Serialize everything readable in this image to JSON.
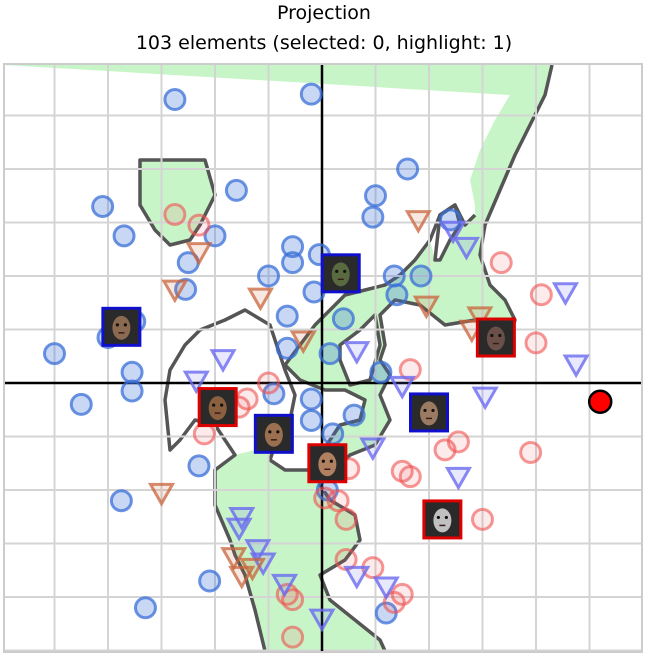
{
  "chart_data": {
    "type": "scatter",
    "title": "Projection",
    "subtitle": "103 elements (selected: 0, highlight: 1)",
    "xlim": [
      -6.0,
      6.0
    ],
    "ylim": [
      -5.0,
      6.0
    ],
    "grid": true,
    "legend": "none",
    "colors": {
      "region": "#c8f5c8",
      "boundary": "#555555",
      "grid": "#d4d4d4",
      "axes": "#000000",
      "blue": "#3a6fd8",
      "red": "#f05050",
      "blue_triangle": "#6a6af0",
      "brown_triangle": "#c8643c",
      "highlight": "#ff0000",
      "frame_blue": "#1010cc",
      "frame_red": "#dd0000"
    },
    "series": [
      {
        "marker": "circle-blue",
        "points": [
          [
            -2.75,
            5.3
          ],
          [
            -0.2,
            5.4
          ],
          [
            -4.1,
            3.3
          ],
          [
            -3.7,
            2.75
          ],
          [
            1.6,
            4.0
          ],
          [
            1.0,
            3.5
          ],
          [
            0.95,
            3.1
          ],
          [
            2.4,
            3.05
          ],
          [
            -1.6,
            3.6
          ],
          [
            -2.0,
            2.75
          ],
          [
            -2.5,
            2.25
          ],
          [
            -3.5,
            1.15
          ],
          [
            -4.0,
            0.85
          ],
          [
            -0.55,
            2.55
          ],
          [
            -0.55,
            2.25
          ],
          [
            -0.05,
            2.4
          ],
          [
            1.35,
            2.0
          ],
          [
            -0.15,
            1.7
          ],
          [
            1.4,
            1.65
          ],
          [
            1.85,
            2.0
          ],
          [
            -1.0,
            2.0
          ],
          [
            -2.55,
            1.75
          ],
          [
            -0.65,
            1.25
          ],
          [
            0.4,
            1.2
          ],
          [
            -0.65,
            0.65
          ],
          [
            0.15,
            0.55
          ],
          [
            -3.55,
            0.2
          ],
          [
            -3.55,
            -0.15
          ],
          [
            -5.0,
            0.55
          ],
          [
            -4.5,
            -0.4
          ],
          [
            1.1,
            0.2
          ],
          [
            -0.2,
            -0.3
          ],
          [
            -0.2,
            -0.7
          ],
          [
            0.6,
            -0.6
          ],
          [
            0.2,
            -0.95
          ],
          [
            -0.9,
            -0.2
          ],
          [
            -2.3,
            -1.55
          ],
          [
            1.9,
            -0.5
          ],
          [
            0.1,
            -2.0
          ],
          [
            -3.75,
            -2.2
          ],
          [
            -2.1,
            -3.7
          ],
          [
            -3.3,
            -4.2
          ],
          [
            1.2,
            -4.3
          ]
        ]
      },
      {
        "marker": "circle-red",
        "points": [
          [
            -2.75,
            3.15
          ],
          [
            -2.3,
            2.95
          ],
          [
            3.35,
            2.25
          ],
          [
            4.1,
            1.65
          ],
          [
            4.0,
            0.75
          ],
          [
            3.9,
            -1.3
          ],
          [
            1.65,
            0.25
          ],
          [
            -1.0,
            0.0
          ],
          [
            -1.4,
            -0.3
          ],
          [
            -2.2,
            -0.95
          ],
          [
            -1.55,
            -0.45
          ],
          [
            0.15,
            -1.65
          ],
          [
            0.5,
            -1.6
          ],
          [
            2.55,
            -1.1
          ],
          [
            2.3,
            -1.25
          ],
          [
            1.5,
            -1.65
          ],
          [
            1.65,
            -1.75
          ],
          [
            0.3,
            -2.2
          ],
          [
            0.45,
            -2.55
          ],
          [
            3.0,
            -2.55
          ],
          [
            0.45,
            -3.3
          ],
          [
            0.95,
            -3.45
          ],
          [
            1.5,
            -3.95
          ],
          [
            1.35,
            -4.1
          ],
          [
            -0.65,
            -3.95
          ],
          [
            -0.55,
            -4.05
          ],
          [
            -0.55,
            -4.75
          ],
          [
            0.05,
            -2.15
          ]
        ]
      },
      {
        "marker": "triangle-blue",
        "points": [
          [
            2.45,
            2.85
          ],
          [
            2.7,
            2.55
          ],
          [
            4.55,
            1.7
          ],
          [
            4.75,
            0.35
          ],
          [
            0.65,
            0.6
          ],
          [
            -1.85,
            0.45
          ],
          [
            -2.35,
            0.05
          ],
          [
            1.5,
            -0.05
          ],
          [
            3.05,
            -0.25
          ],
          [
            0.95,
            -1.2
          ],
          [
            2.55,
            -1.75
          ],
          [
            -1.5,
            -2.5
          ],
          [
            -1.55,
            -2.7
          ],
          [
            -1.1,
            -3.35
          ],
          [
            -0.7,
            -3.75
          ],
          [
            0.65,
            -3.6
          ],
          [
            1.2,
            -3.8
          ],
          [
            0.0,
            -4.4
          ],
          [
            -1.2,
            -3.1
          ]
        ]
      },
      {
        "marker": "triangle-brown",
        "points": [
          [
            1.8,
            3.05
          ],
          [
            -2.3,
            2.45
          ],
          [
            -2.75,
            1.75
          ],
          [
            -1.15,
            1.6
          ],
          [
            1.95,
            1.45
          ],
          [
            2.95,
            1.25
          ],
          [
            -0.35,
            0.8
          ],
          [
            -3.0,
            -2.05
          ],
          [
            -1.65,
            -3.25
          ],
          [
            -1.5,
            -3.6
          ],
          [
            -1.3,
            -3.45
          ],
          [
            2.8,
            1.0
          ]
        ]
      },
      {
        "marker": "circle-highlight",
        "points": [
          [
            5.2,
            -0.35
          ]
        ]
      }
    ],
    "thumbnails": [
      {
        "frame": "blue",
        "x": -3.75,
        "y": 1.05,
        "skin": "#8a6a50"
      },
      {
        "frame": "blue",
        "x": 0.35,
        "y": 2.05,
        "skin": "#5a6a40"
      },
      {
        "frame": "red",
        "x": 3.25,
        "y": 0.85,
        "skin": "#6a5048"
      },
      {
        "frame": "red",
        "x": -1.95,
        "y": -0.45,
        "skin": "#8a6040"
      },
      {
        "frame": "blue",
        "x": -0.9,
        "y": -0.95,
        "skin": "#9a7050"
      },
      {
        "frame": "red",
        "x": 0.1,
        "y": -1.5,
        "skin": "#b08060"
      },
      {
        "frame": "blue",
        "x": 2.0,
        "y": -0.55,
        "skin": "#9a7a60"
      },
      {
        "frame": "red",
        "x": 2.25,
        "y": -2.55,
        "skin": "#c0c0c0"
      }
    ]
  }
}
